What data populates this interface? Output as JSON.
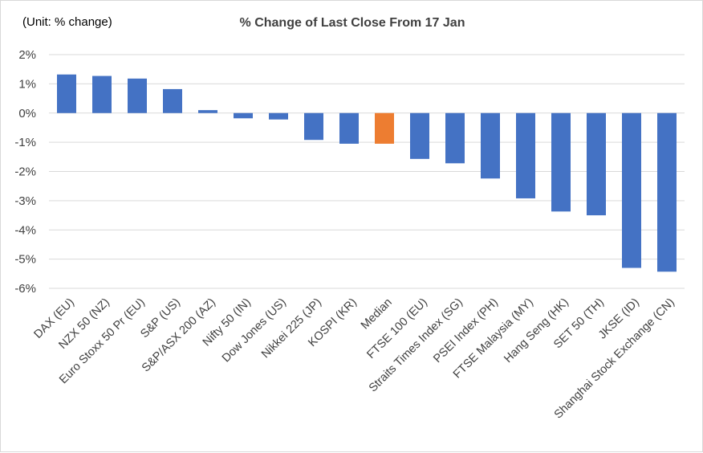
{
  "unit_note": "(Unit: % change)",
  "chart_data": {
    "type": "bar",
    "title": "% Change of Last Close From 17 Jan",
    "xlabel": "",
    "ylabel": "",
    "ylim": [
      -6,
      2
    ],
    "yticks": [
      2,
      1,
      0,
      -1,
      -2,
      -3,
      -4,
      -5,
      -6
    ],
    "ytick_labels": [
      "2%",
      "1%",
      "0%",
      "-1%",
      "-2%",
      "-3%",
      "-4%",
      "-5%",
      "-6%"
    ],
    "grid": true,
    "categories": [
      "DAX (EU)",
      "NZX 50 (NZ)",
      "Euro Stoxx 50 Pr (EU)",
      "S&P (US)",
      "S&P/ASX 200 (AZ)",
      "Nifty 50 (IN)",
      "Dow Jones (US)",
      "Nikkei 225 (JP)",
      "KOSPI (KR)",
      "Median",
      "FTSE 100 (EU)",
      "Straits Times Index (SG)",
      "PSEI Index (PH)",
      "FTSE Malaysia (MY)",
      "Hang Seng (HK)",
      "SET 50 (TH)",
      "JKSE (ID)",
      "Shanghai Stock Exchange (CN)"
    ],
    "values": [
      1.32,
      1.27,
      1.18,
      0.82,
      0.1,
      -0.18,
      -0.22,
      -0.92,
      -1.05,
      -1.05,
      -1.57,
      -1.72,
      -2.24,
      -2.92,
      -3.37,
      -3.5,
      -5.3,
      -5.43
    ],
    "colors": {
      "default": "#4472c4",
      "highlight": "#ed7d31",
      "highlight_category": "Median"
    }
  }
}
